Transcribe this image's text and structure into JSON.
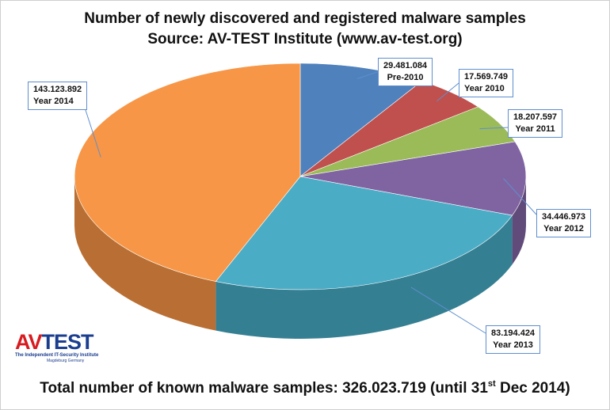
{
  "title_line1": "Number of newly discovered and registered malware samples",
  "title_line2": "Source: AV-TEST Institute (www.av-test.org)",
  "footer": {
    "text": "Total number of known malware samples: 326.023.719 (until 31",
    "sup": "st",
    "tail": " Dec 2014)"
  },
  "logo": {
    "brand_av": "AV",
    "brand_test": "TEST",
    "tagline": "The Independent IT-Security Institute",
    "location": "Magdeburg Germany"
  },
  "chart_data": {
    "type": "pie",
    "categories": [
      "Pre-2010",
      "Year 2010",
      "Year 2011",
      "Year 2012",
      "Year 2013",
      "Year 2014"
    ],
    "values": [
      29481084,
      17569749,
      18207597,
      34446973,
      83194424,
      143123892
    ],
    "value_labels": [
      "29.481.084",
      "17.569.749",
      "18.207.597",
      "34.446.973",
      "83.194.424",
      "143.123.892"
    ],
    "colors": [
      "#4f81bd",
      "#c0504d",
      "#9bbb59",
      "#8064a2",
      "#4bacc6",
      "#f79646"
    ],
    "side_colors": [
      "#3a6191",
      "#903b39",
      "#748c43",
      "#604b7a",
      "#357f93",
      "#b96f33"
    ],
    "total": 326023719,
    "start_angle_deg": 0,
    "direction": "clockwise",
    "style": "3d"
  }
}
